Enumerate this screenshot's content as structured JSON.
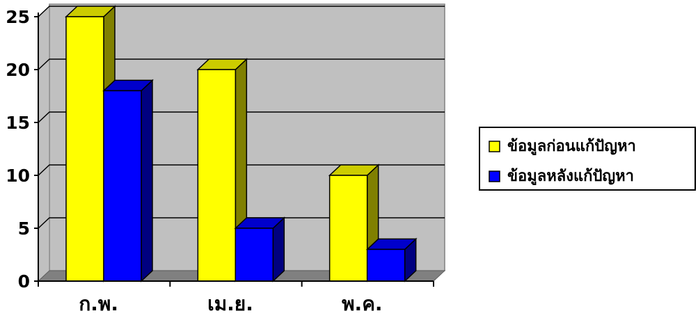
{
  "chart_data": {
    "type": "bar",
    "categories": [
      "ก.พ.",
      "เม.ย.",
      "พ.ค."
    ],
    "series": [
      {
        "name": "ข้อมูลก่อนแก้ปัญหา",
        "values": [
          25,
          20,
          10
        ],
        "color": "#ffff00"
      },
      {
        "name": "ข้อมูลหลังแก้ปัญหา",
        "values": [
          18,
          5,
          3
        ],
        "color": "#0000ff"
      }
    ],
    "ylim": [
      0,
      25
    ],
    "yticks": [
      "0",
      "5",
      "10",
      "15",
      "20",
      "25"
    ],
    "ytick_values": [
      0,
      5,
      10,
      15,
      20,
      25
    ],
    "grid": true,
    "legend": "right",
    "background": "#c0c0c0",
    "floor_color": "#808080"
  }
}
